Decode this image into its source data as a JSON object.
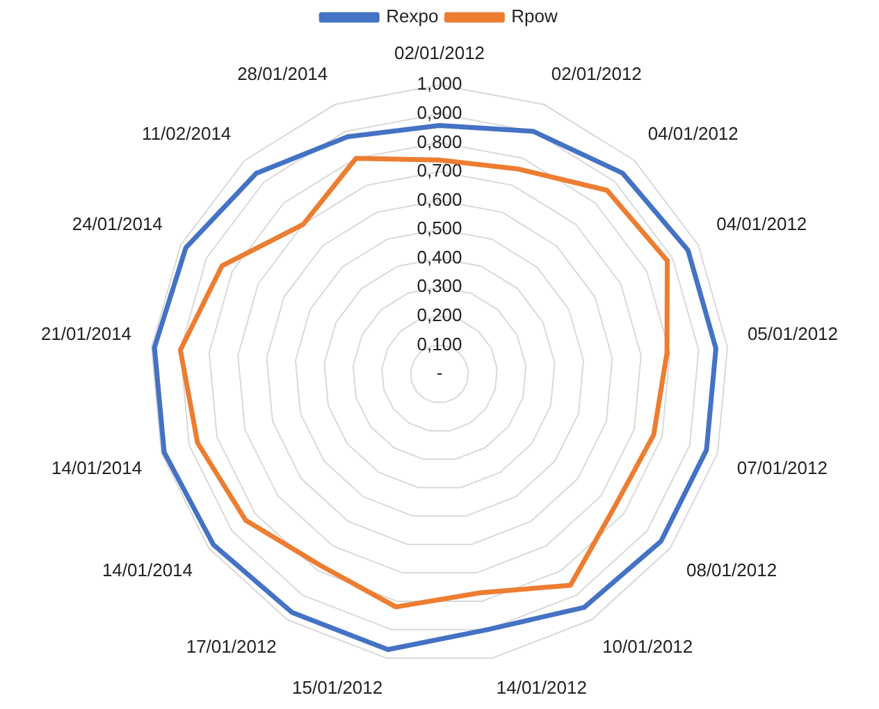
{
  "chart_data": {
    "type": "radar",
    "categories": [
      "02/01/2012",
      "02/01/2012",
      "04/01/2012",
      "04/01/2012",
      "05/01/2012",
      "07/01/2012",
      "08/01/2012",
      "10/01/2012",
      "14/01/2012",
      "15/01/2012",
      "17/01/2012",
      "14/01/2014",
      "14/01/2014",
      "21/01/2014",
      "24/01/2014",
      "11/02/2014",
      "28/01/2014"
    ],
    "series": [
      {
        "name": "Rexpo",
        "color": "#4472c4",
        "values": [
          0.86,
          0.9,
          0.94,
          0.96,
          0.96,
          0.96,
          0.96,
          0.95,
          0.9,
          0.97,
          0.97,
          0.98,
          0.99,
          0.99,
          0.98,
          0.94,
          0.88
        ]
      },
      {
        "name": "Rpow",
        "color": "#ed7d31",
        "values": [
          0.74,
          0.76,
          0.86,
          0.88,
          0.79,
          0.77,
          0.76,
          0.86,
          0.77,
          0.82,
          0.78,
          0.84,
          0.87,
          0.9,
          0.84,
          0.7,
          0.8
        ]
      }
    ],
    "ylim": [
      0,
      1
    ],
    "yticks": [
      {
        "value": 0,
        "label": "-"
      },
      {
        "value": 0.1,
        "label": "0,100"
      },
      {
        "value": 0.2,
        "label": "0,200"
      },
      {
        "value": 0.3,
        "label": "0,300"
      },
      {
        "value": 0.4,
        "label": "0,400"
      },
      {
        "value": 0.5,
        "label": "0,500"
      },
      {
        "value": 0.6,
        "label": "0,600"
      },
      {
        "value": 0.7,
        "label": "0,700"
      },
      {
        "value": 0.8,
        "label": "0,800"
      },
      {
        "value": 0.9,
        "label": "0,900"
      },
      {
        "value": 1,
        "label": "1,000"
      }
    ],
    "grid": true,
    "legend": "top",
    "marker": "none",
    "line_style": "solid"
  }
}
